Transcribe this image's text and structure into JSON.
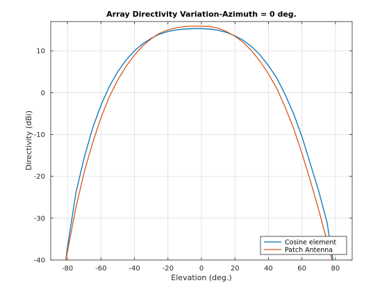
{
  "chart_data": {
    "type": "line",
    "title": "Array Directivity Variation-Azimuth = 0 deg.",
    "xlabel": "Elevation (deg.)",
    "ylabel": "Directivity (dBi)",
    "xlim": [
      -90,
      90
    ],
    "ylim": [
      -40,
      17
    ],
    "xticks": [
      -80,
      -60,
      -40,
      -20,
      0,
      20,
      40,
      60,
      80
    ],
    "yticks": [
      -40,
      -30,
      -20,
      -10,
      0,
      10
    ],
    "grid": true,
    "legend_position": "bottom-right",
    "series": [
      {
        "name": "Cosine element",
        "color": "#0072BD",
        "x": [
          -81,
          -80,
          -75,
          -70,
          -65,
          -60,
          -55,
          -50,
          -45,
          -40,
          -35,
          -30,
          -25,
          -20,
          -15,
          -10,
          -5,
          0,
          5,
          10,
          15,
          20,
          25,
          30,
          35,
          40,
          45,
          50,
          55,
          60,
          65,
          70,
          75,
          78.5
        ],
        "y": [
          -40,
          -37,
          -24,
          -15.5,
          -8.5,
          -3,
          1.5,
          5,
          7.8,
          10,
          11.7,
          13,
          14,
          14.6,
          15,
          15.2,
          15.3,
          15.3,
          15.2,
          14.9,
          14.4,
          13.6,
          12.5,
          11,
          9,
          6.5,
          3.5,
          -0.5,
          -5,
          -10.5,
          -17,
          -23.5,
          -31,
          -40
        ]
      },
      {
        "name": "Patch Antenna",
        "color": "#D95319",
        "x": [
          -81,
          -80,
          -75,
          -70,
          -65,
          -60,
          -55,
          -50,
          -45,
          -40,
          -35,
          -30,
          -25,
          -20,
          -15,
          -10,
          -5,
          0,
          5,
          10,
          15,
          20,
          25,
          30,
          35,
          40,
          45,
          50,
          55,
          60,
          65,
          70,
          75,
          78
        ],
        "y": [
          -40,
          -38,
          -27.5,
          -19,
          -12,
          -6,
          -1,
          3,
          6.3,
          9,
          11.2,
          12.9,
          14.2,
          15,
          15.5,
          15.8,
          15.9,
          15.9,
          15.8,
          15.4,
          14.6,
          13.5,
          12,
          10,
          7.5,
          4.5,
          1,
          -3.5,
          -8.5,
          -14.5,
          -21,
          -28,
          -35.5,
          -40
        ]
      }
    ]
  }
}
